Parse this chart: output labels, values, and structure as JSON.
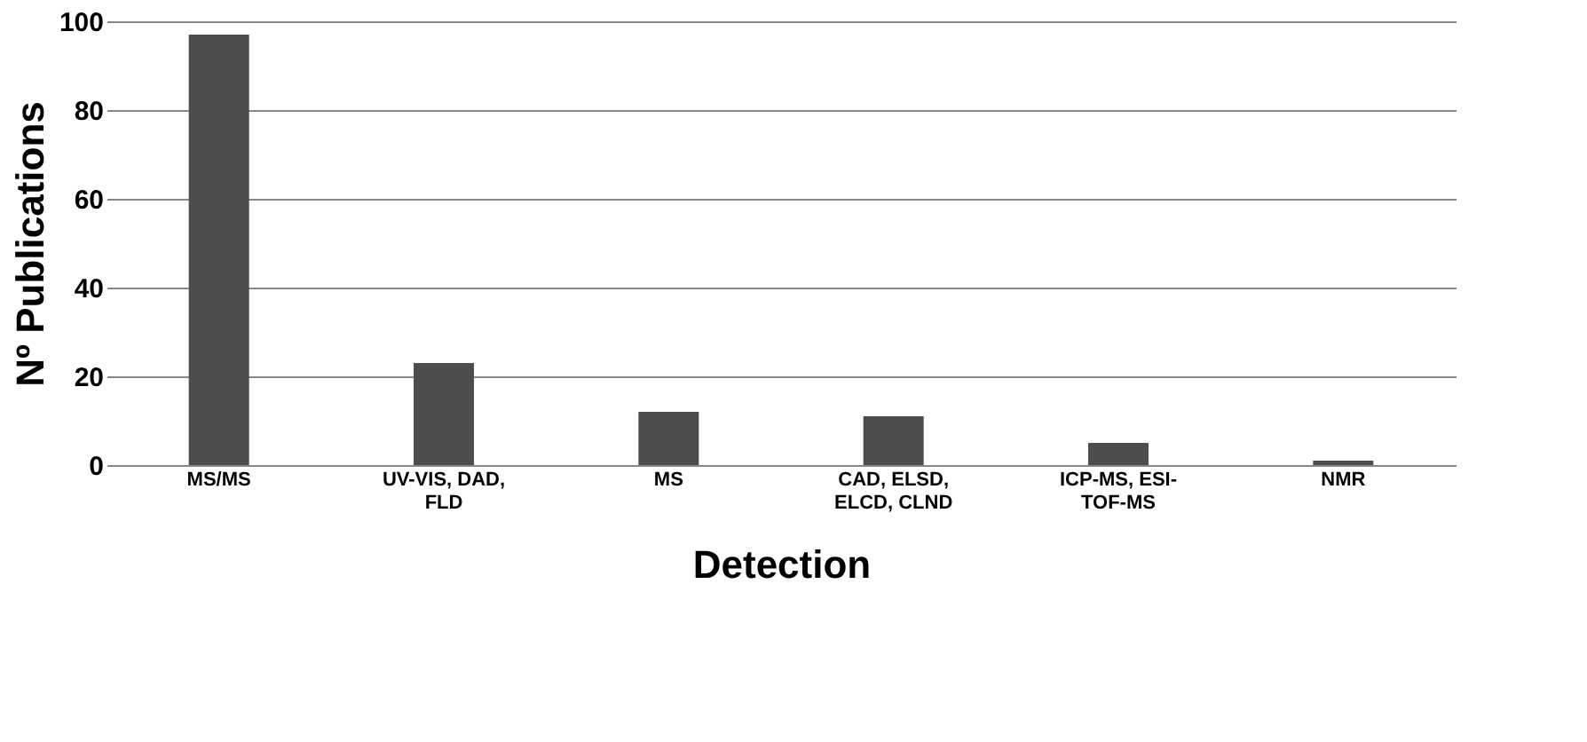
{
  "chart_data": {
    "type": "bar",
    "xlabel": "Detection",
    "ylabel": "Nº Publications",
    "categories": [
      "MS/MS",
      "UV-VIS, DAD, FLD",
      "MS",
      "CAD, ELSD, ELCD, CLND",
      "ICP-MS, ESI-TOF-MS",
      "NMR"
    ],
    "values": [
      97,
      23,
      12,
      11,
      5,
      1
    ],
    "color": "#4d4d4d",
    "ylim": [
      0,
      100
    ],
    "yticks": [
      0,
      20,
      40,
      60,
      80,
      100
    ],
    "grid": "y"
  }
}
